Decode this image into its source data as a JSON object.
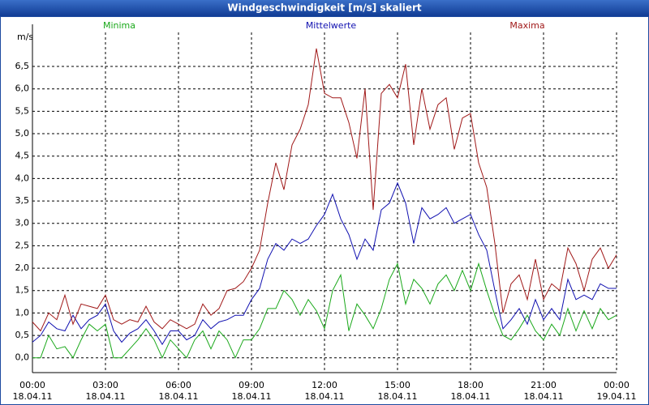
{
  "chart_data": {
    "type": "line",
    "title": "Windgeschwindigkeit [m/s] skaliert",
    "y_label": "m/s",
    "x": [
      0,
      20,
      40,
      60,
      80,
      100,
      120,
      140,
      160,
      180,
      200,
      220,
      240,
      260,
      280,
      300,
      320,
      340,
      360,
      380,
      400,
      420,
      440,
      460,
      480,
      500,
      520,
      540,
      560,
      580,
      600,
      620,
      640,
      660,
      680,
      700,
      720,
      740,
      760,
      780,
      800,
      820,
      840,
      860,
      880,
      900,
      920,
      940,
      960,
      980,
      1000,
      1020,
      1040,
      1060,
      1080,
      1100,
      1120,
      1140,
      1160,
      1180,
      1200,
      1220,
      1240,
      1260,
      1280,
      1300,
      1320,
      1340,
      1360,
      1380,
      1400,
      1420,
      1440
    ],
    "series": [
      {
        "name": "Minima",
        "color": "#1aa81a",
        "values": [
          0,
          0,
          0.5,
          0.2,
          0.25,
          0,
          0.4,
          0.75,
          0.6,
          0.75,
          0,
          0,
          0.2,
          0.4,
          0.65,
          0.4,
          0,
          0.4,
          0.2,
          0,
          0.4,
          0.6,
          0.2,
          0.6,
          0.4,
          0,
          0.4,
          0.4,
          0.65,
          1.1,
          1.1,
          1.5,
          1.3,
          0.95,
          1.3,
          1.05,
          0.65,
          1.5,
          1.85,
          0.6,
          1.2,
          0.95,
          0.65,
          1.1,
          1.75,
          2.1,
          1.2,
          1.75,
          1.55,
          1.2,
          1.65,
          1.85,
          1.5,
          1.95,
          1.5,
          2.1,
          1.5,
          0.95,
          0.5,
          0.4,
          0.65,
          0.95,
          0.6,
          0.4,
          0.75,
          0.5,
          1.1,
          0.6,
          1.05,
          0.65,
          1.1,
          0.85,
          0.95
        ]
      },
      {
        "name": "Mittelwerte",
        "color": "#1010b0",
        "values": [
          0.35,
          0.5,
          0.8,
          0.65,
          0.6,
          0.95,
          0.65,
          0.85,
          0.95,
          1.2,
          0.6,
          0.35,
          0.55,
          0.65,
          0.85,
          0.6,
          0.3,
          0.6,
          0.6,
          0.4,
          0.5,
          0.85,
          0.65,
          0.8,
          0.85,
          0.95,
          0.95,
          1.3,
          1.55,
          2.2,
          2.55,
          2.4,
          2.65,
          2.55,
          2.65,
          2.95,
          3.2,
          3.65,
          3.1,
          2.75,
          2.2,
          2.65,
          2.4,
          3.3,
          3.45,
          3.9,
          3.45,
          2.55,
          3.35,
          3.1,
          3.2,
          3.35,
          3.0,
          3.1,
          3.2,
          2.75,
          2.4,
          1.5,
          0.65,
          0.85,
          1.1,
          0.75,
          1.3,
          0.85,
          1.1,
          0.85,
          1.75,
          1.3,
          1.4,
          1.3,
          1.65,
          1.55,
          1.55
        ]
      },
      {
        "name": "Maxima",
        "color": "#a01818",
        "values": [
          0.8,
          0.6,
          1.0,
          0.85,
          1.4,
          0.75,
          1.2,
          1.15,
          1.1,
          1.4,
          0.85,
          0.75,
          0.85,
          0.8,
          1.15,
          0.8,
          0.65,
          0.85,
          0.75,
          0.65,
          0.75,
          1.2,
          0.95,
          1.1,
          1.5,
          1.55,
          1.7,
          2.0,
          2.4,
          3.45,
          4.35,
          3.75,
          4.75,
          5.1,
          5.65,
          6.9,
          5.9,
          5.8,
          5.8,
          5.25,
          4.45,
          6.0,
          3.3,
          5.9,
          6.1,
          5.8,
          6.55,
          4.75,
          6.0,
          5.1,
          5.65,
          5.8,
          4.65,
          5.35,
          5.45,
          4.35,
          3.8,
          2.55,
          1.0,
          1.65,
          1.85,
          1.3,
          2.2,
          1.3,
          1.65,
          1.5,
          2.45,
          2.1,
          1.5,
          2.2,
          2.45,
          2.0,
          2.3
        ]
      }
    ],
    "xlim": [
      0,
      1440
    ],
    "xticks": [
      {
        "value": 0,
        "label": "00:00",
        "date": "18.04.11"
      },
      {
        "value": 180,
        "label": "03:00",
        "date": "18.04.11"
      },
      {
        "value": 360,
        "label": "06:00",
        "date": "18.04.11"
      },
      {
        "value": 540,
        "label": "09:00",
        "date": "18.04.11"
      },
      {
        "value": 720,
        "label": "12:00",
        "date": "18.04.11"
      },
      {
        "value": 900,
        "label": "15:00",
        "date": "18.04.11"
      },
      {
        "value": 1080,
        "label": "18:00",
        "date": "18.04.11"
      },
      {
        "value": 1260,
        "label": "21:00",
        "date": "18.04.11"
      },
      {
        "value": 1440,
        "label": "00:00",
        "date": "19.04.11"
      }
    ],
    "ylim": [
      -0.33,
      7.26
    ],
    "yticks": [
      {
        "value": 0,
        "label": "0,0"
      },
      {
        "value": 0.5,
        "label": "0,5"
      },
      {
        "value": 1,
        "label": "1,0"
      },
      {
        "value": 1.5,
        "label": "1,5"
      },
      {
        "value": 2,
        "label": "2,0"
      },
      {
        "value": 2.5,
        "label": "2,5"
      },
      {
        "value": 3,
        "label": "3,0"
      },
      {
        "value": 3.5,
        "label": "3,5"
      },
      {
        "value": 4,
        "label": "4,0"
      },
      {
        "value": 4.5,
        "label": "4,5"
      },
      {
        "value": 5,
        "label": "5,0"
      },
      {
        "value": 5.5,
        "label": "5,5"
      },
      {
        "value": 6,
        "label": "6,0"
      },
      {
        "value": 6.5,
        "label": "6,5"
      }
    ],
    "grid": true
  }
}
